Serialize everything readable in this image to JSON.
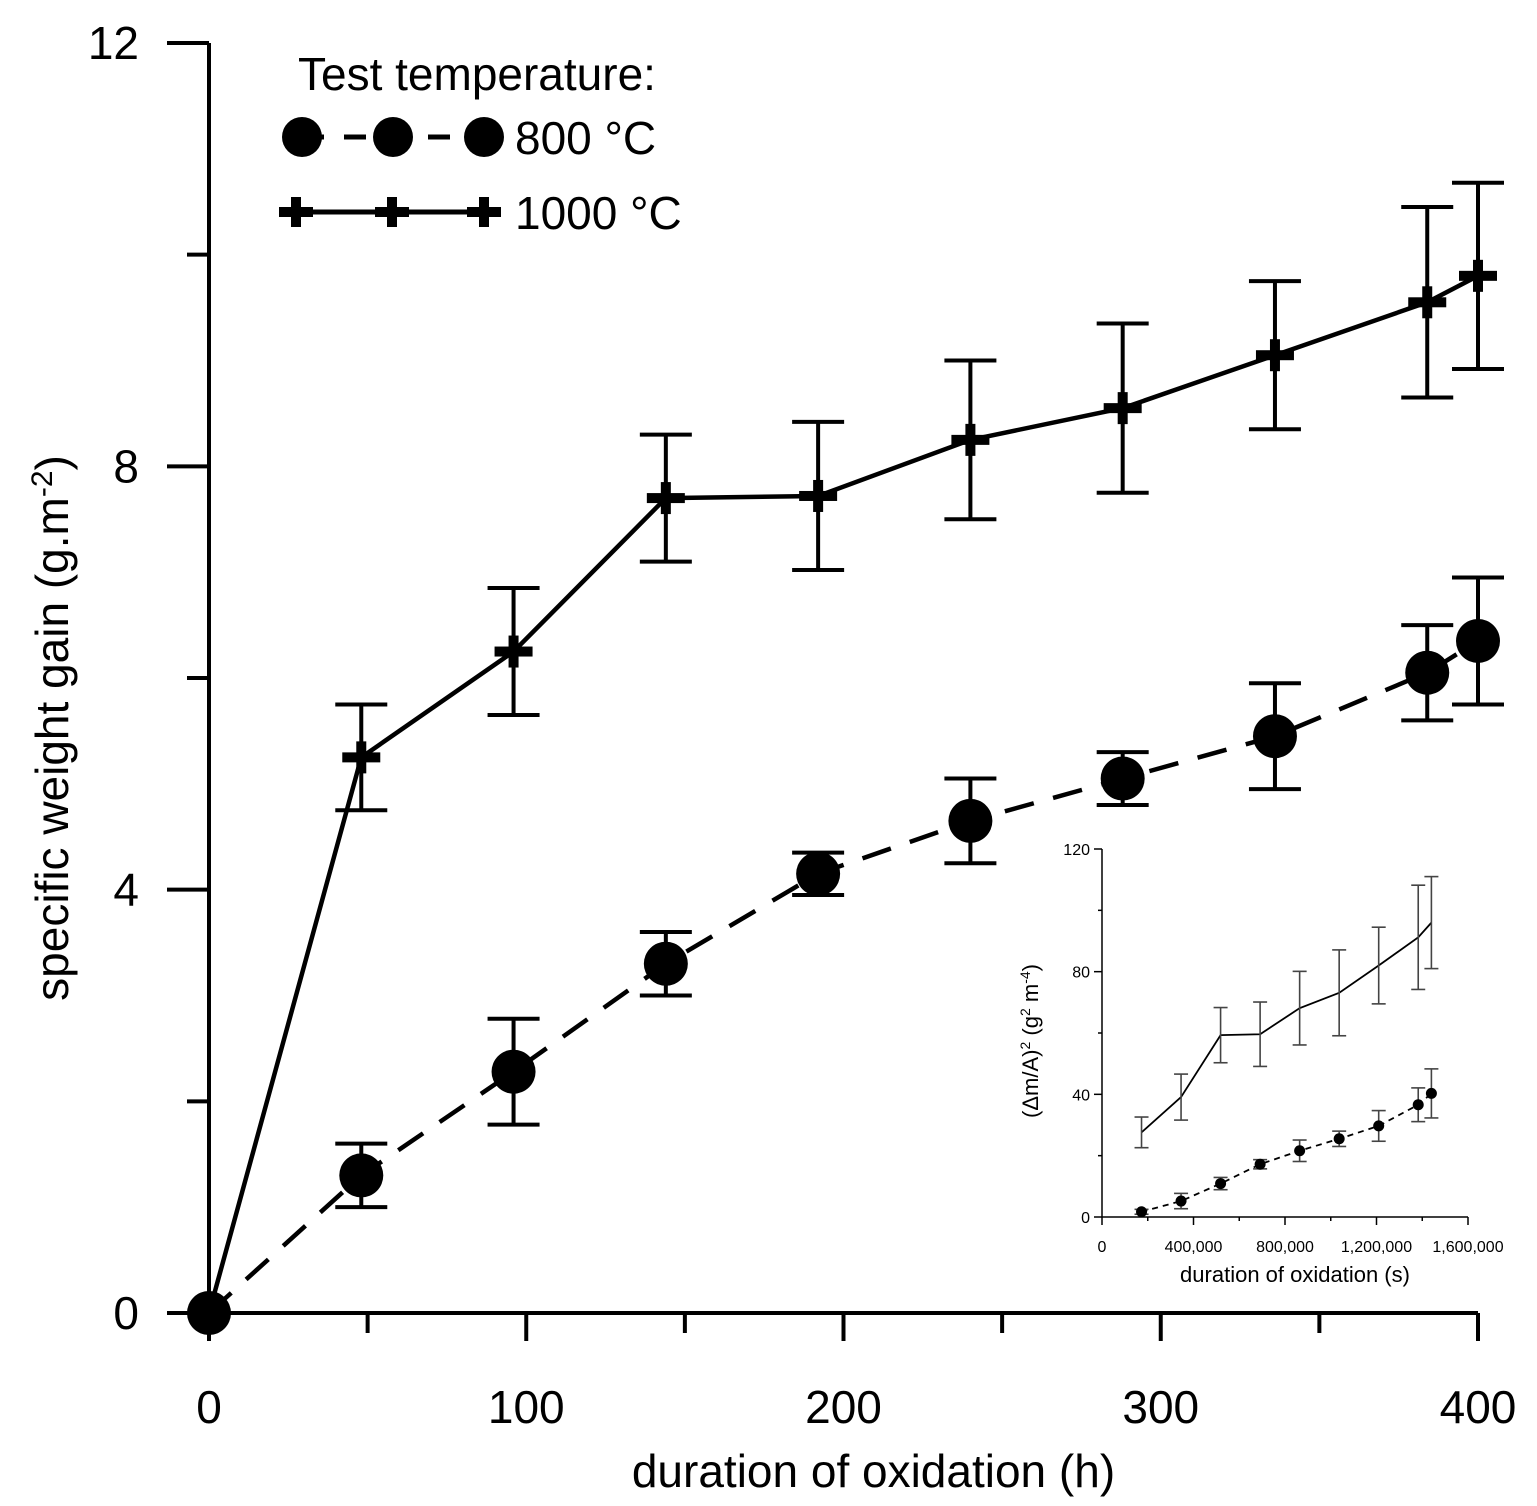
{
  "chart_data": [
    {
      "type": "line",
      "title": "",
      "xlabel": "duration of oxidation (h)",
      "ylabel_main": "specific weight gain (g.m",
      "ylabel_sup": "-2",
      "ylabel_close": ")",
      "xlim": [
        0,
        400
      ],
      "ylim": [
        0,
        12
      ],
      "xticks": [
        0,
        100,
        200,
        300,
        400
      ],
      "xticks_minor": [
        50,
        150,
        250,
        350
      ],
      "yticks": [
        0,
        4,
        8,
        12
      ],
      "yticks_minor": [
        2,
        6,
        10
      ],
      "legend_title": "Test temperature:",
      "legend_position": "top-left",
      "series": [
        {
          "name": "800 °C",
          "style": "dashed",
          "marker": "circle",
          "x": [
            0,
            48,
            96,
            144,
            192,
            240,
            288,
            336,
            384,
            400
          ],
          "y": [
            0,
            1.3,
            2.28,
            3.3,
            4.15,
            4.65,
            5.05,
            5.45,
            6.05,
            6.35
          ],
          "err": [
            0,
            0.3,
            0.5,
            0.3,
            0.2,
            0.4,
            0.25,
            0.5,
            0.45,
            0.6
          ]
        },
        {
          "name": "1000 °C",
          "style": "solid",
          "marker": "plus",
          "x": [
            0,
            48,
            96,
            144,
            192,
            240,
            288,
            336,
            384,
            400
          ],
          "y": [
            0,
            5.25,
            6.25,
            7.7,
            7.72,
            8.25,
            8.55,
            9.05,
            9.55,
            9.8
          ],
          "err": [
            0,
            0.5,
            0.6,
            0.6,
            0.7,
            0.75,
            0.8,
            0.7,
            0.9,
            0.88
          ]
        }
      ]
    },
    {
      "type": "line",
      "title": "",
      "xlabel": "duration of oxidation (s)",
      "ylabel_a": "(Δm/A)",
      "ylabel_sup1": "2",
      "ylabel_b": " (g",
      "ylabel_sup2": "2",
      "ylabel_c": " m",
      "ylabel_sup3": "-4",
      "ylabel_d": ")",
      "xlim": [
        0,
        1600000
      ],
      "ylim": [
        0,
        120
      ],
      "xticks": [
        0,
        400000,
        800000,
        1200000,
        1600000
      ],
      "xtick_labels": [
        "0",
        "400,000",
        "800,000",
        "1,200,000",
        "1,600,000"
      ],
      "yticks": [
        0,
        40,
        80,
        120
      ],
      "series": [
        {
          "name": "800 °C",
          "style": "dashed",
          "marker": "circle",
          "x": [
            172800,
            345600,
            518400,
            691200,
            864000,
            1036800,
            1209600,
            1382400,
            1440000
          ],
          "y": [
            1.7,
            5.2,
            10.9,
            17.2,
            21.6,
            25.5,
            29.7,
            36.6,
            40.3
          ],
          "err": [
            0.8,
            2.5,
            2.0,
            1.5,
            3.5,
            2.5,
            5.0,
            5.5,
            8.0
          ]
        },
        {
          "name": "1000 °C",
          "style": "solid",
          "marker": "none",
          "x": [
            172800,
            345600,
            518400,
            691200,
            864000,
            1036800,
            1209600,
            1382400,
            1440000
          ],
          "y": [
            27.6,
            39.1,
            59.3,
            59.6,
            68.1,
            73.1,
            82.0,
            91.2,
            96.0
          ],
          "err": [
            5.0,
            7.5,
            9.0,
            10.5,
            12.0,
            14.0,
            12.5,
            17.0,
            15.0
          ]
        }
      ]
    }
  ]
}
